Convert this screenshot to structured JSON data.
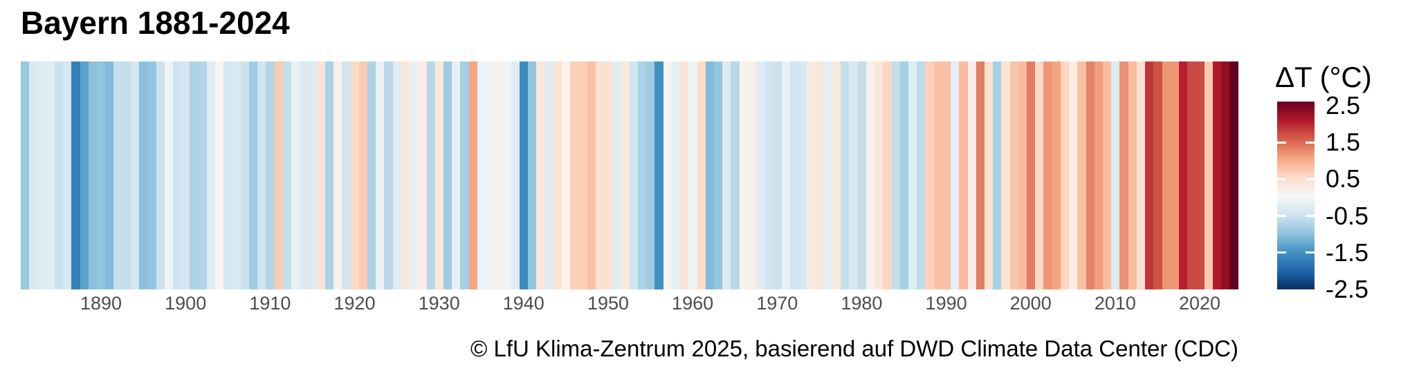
{
  "title": "Bayern 1881-2024",
  "footer": "© LfU Klima-Zentrum 2025, basierend auf DWD Climate Data Center (CDC)",
  "legend": {
    "title": "ΔT (°C)",
    "tick_labels": [
      "2.5",
      "1.5",
      "0.5",
      "-0.5",
      "-1.5",
      "-2.5"
    ],
    "tick_values": [
      2.5,
      1.5,
      0.5,
      -0.5,
      -1.5,
      -2.5
    ]
  },
  "x_axis": {
    "tick_labels": [
      "1890",
      "1900",
      "1910",
      "1920",
      "1930",
      "1940",
      "1950",
      "1960",
      "1970",
      "1980",
      "1990",
      "2000",
      "2010",
      "2020"
    ],
    "tick_years": [
      1890,
      1900,
      1910,
      1920,
      1930,
      1940,
      1950,
      1960,
      1970,
      1980,
      1990,
      2000,
      2010,
      2020
    ]
  },
  "chart_data": {
    "type": "heatmap",
    "subtype": "warming-stripes",
    "title": "Bayern 1881-2024",
    "legend_title": "ΔT (°C)",
    "year_start": 1881,
    "year_end": 2024,
    "value_range": [
      -2.5,
      2.5
    ],
    "grid": false,
    "legend_position": "right",
    "colormap_stops": [
      "#053061",
      "#2166ac",
      "#4393c3",
      "#92c5de",
      "#d1e5f0",
      "#f7f7f7",
      "#fddbc7",
      "#f4a582",
      "#d6604d",
      "#b2182b",
      "#67001f"
    ],
    "series": [
      {
        "name": "ΔT (°C)",
        "values": [
          -0.95,
          -0.4,
          -0.3,
          -0.3,
          -0.55,
          -0.45,
          -1.7,
          -1.35,
          -1.05,
          -1.0,
          -1.1,
          -0.6,
          -0.6,
          -0.45,
          -1.05,
          -1.0,
          -0.55,
          -0.1,
          -0.5,
          -0.45,
          -0.8,
          -0.75,
          -0.3,
          0.05,
          -0.45,
          -0.4,
          -0.55,
          -0.9,
          -0.5,
          -0.75,
          0.65,
          -0.6,
          -0.2,
          -0.35,
          -0.35,
          0.35,
          -0.8,
          0.15,
          -0.5,
          0.5,
          0.65,
          -0.8,
          -0.2,
          -0.7,
          -0.3,
          0.3,
          -0.2,
          0.2,
          -0.7,
          0.3,
          -0.9,
          -0.25,
          -0.85,
          1.0,
          -0.15,
          -0.1,
          0.15,
          -0.1,
          -0.3,
          -1.6,
          -1.0,
          0.3,
          -0.3,
          0.35,
          0.1,
          0.6,
          0.6,
          0.75,
          0.4,
          0.4,
          -0.3,
          0.25,
          -0.5,
          -0.8,
          -0.9,
          -1.55,
          0.05,
          -0.25,
          0.35,
          -0.15,
          0.5,
          -1.1,
          -1.0,
          -0.35,
          -0.7,
          0.1,
          0.15,
          -0.3,
          -0.5,
          -0.55,
          -0.2,
          -0.5,
          -0.45,
          0.25,
          0.3,
          -0.25,
          0.25,
          -0.6,
          -0.4,
          -0.6,
          0.15,
          0.3,
          0.55,
          -0.6,
          -0.85,
          -0.3,
          -0.65,
          0.6,
          0.75,
          0.75,
          -0.25,
          0.8,
          0.2,
          1.3,
          0.4,
          -0.85,
          0.35,
          0.7,
          0.8,
          1.3,
          0.5,
          1.1,
          1.0,
          0.55,
          0.2,
          0.75,
          1.25,
          1.05,
          0.8,
          -0.35,
          1.15,
          0.8,
          0.4,
          1.8,
          1.6,
          1.1,
          1.1,
          1.95,
          1.65,
          1.65,
          0.65,
          2.0,
          2.2,
          2.5
        ]
      }
    ]
  }
}
